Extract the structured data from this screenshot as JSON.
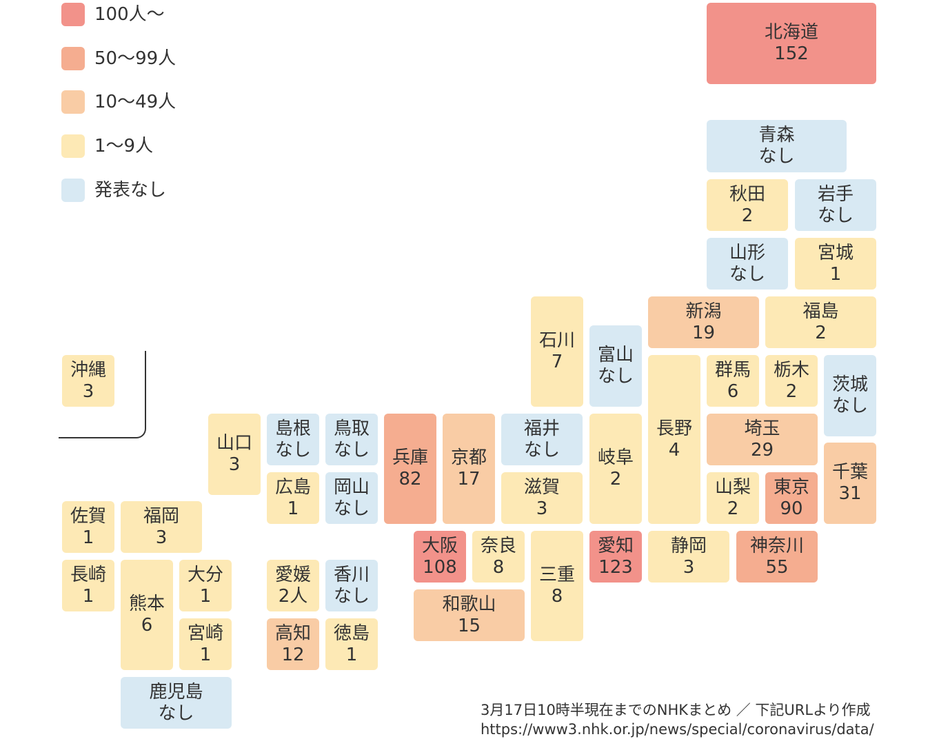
{
  "legend": [
    {
      "label": "100人〜",
      "color": "#f2928a"
    },
    {
      "label": "50〜99人",
      "color": "#f5ad90"
    },
    {
      "label": "10〜49人",
      "color": "#f9cca5"
    },
    {
      "label": "1〜9人",
      "color": "#fde9b5"
    },
    {
      "label": "発表なし",
      "color": "#d8e9f3"
    }
  ],
  "prefectures": {
    "hokkaido": {
      "name": "北海道",
      "value": "152"
    },
    "aomori": {
      "name": "青森",
      "value": "なし"
    },
    "akita": {
      "name": "秋田",
      "value": "2"
    },
    "iwate": {
      "name": "岩手",
      "value": "なし"
    },
    "yamagata": {
      "name": "山形",
      "value": "なし"
    },
    "miyagi": {
      "name": "宮城",
      "value": "1"
    },
    "niigata": {
      "name": "新潟",
      "value": "19"
    },
    "fukushima": {
      "name": "福島",
      "value": "2"
    },
    "ishikawa": {
      "name": "石川",
      "value": "7"
    },
    "toyama": {
      "name": "富山",
      "value": "なし"
    },
    "nagano": {
      "name": "長野",
      "value": "4"
    },
    "gunma": {
      "name": "群馬",
      "value": "6"
    },
    "tochigi": {
      "name": "栃木",
      "value": "2"
    },
    "ibaraki": {
      "name": "茨城",
      "value": "なし"
    },
    "saitama": {
      "name": "埼玉",
      "value": "29"
    },
    "chiba": {
      "name": "千葉",
      "value": "31"
    },
    "yamanashi": {
      "name": "山梨",
      "value": "2"
    },
    "tokyo": {
      "name": "東京",
      "value": "90"
    },
    "kanagawa": {
      "name": "神奈川",
      "value": "55"
    },
    "shizuoka": {
      "name": "静岡",
      "value": "3"
    },
    "aichi": {
      "name": "愛知",
      "value": "123"
    },
    "gifu": {
      "name": "岐阜",
      "value": "2"
    },
    "fukui": {
      "name": "福井",
      "value": "なし"
    },
    "shiga": {
      "name": "滋賀",
      "value": "3"
    },
    "mie": {
      "name": "三重",
      "value": "8"
    },
    "nara": {
      "name": "奈良",
      "value": "8"
    },
    "wakayama": {
      "name": "和歌山",
      "value": "15"
    },
    "osaka": {
      "name": "大阪",
      "value": "108"
    },
    "kyoto": {
      "name": "京都",
      "value": "17"
    },
    "hyogo": {
      "name": "兵庫",
      "value": "82"
    },
    "tottori": {
      "name": "鳥取",
      "value": "なし"
    },
    "okayama": {
      "name": "岡山",
      "value": "なし"
    },
    "shimane": {
      "name": "島根",
      "value": "なし"
    },
    "hiroshima": {
      "name": "広島",
      "value": "1"
    },
    "yamaguchi": {
      "name": "山口",
      "value": "3"
    },
    "kagawa": {
      "name": "香川",
      "value": "なし"
    },
    "ehime": {
      "name": "愛媛",
      "value": "2人"
    },
    "tokushima": {
      "name": "徳島",
      "value": "1"
    },
    "kochi": {
      "name": "高知",
      "value": "12"
    },
    "fukuoka": {
      "name": "福岡",
      "value": "3"
    },
    "saga": {
      "name": "佐賀",
      "value": "1"
    },
    "nagasaki": {
      "name": "長崎",
      "value": "1"
    },
    "kumamoto": {
      "name": "熊本",
      "value": "6"
    },
    "oita": {
      "name": "大分",
      "value": "1"
    },
    "miyazaki": {
      "name": "宮崎",
      "value": "1"
    },
    "kagoshima": {
      "name": "鹿児島",
      "value": "なし"
    },
    "okinawa": {
      "name": "沖縄",
      "value": "3"
    }
  },
  "source": {
    "line1": "3月17日10時半現在までのNHKまとめ ／ 下記URLより作成",
    "line2": "https://www3.nhk.or.jp/news/special/coronavirus/data/"
  }
}
